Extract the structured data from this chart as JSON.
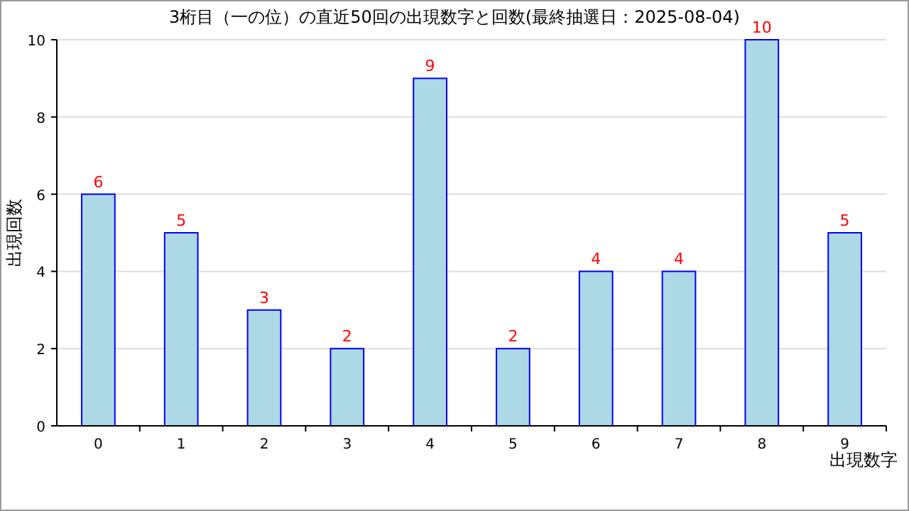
{
  "chart_data": {
    "type": "bar",
    "title": "3桁目（一の位）の直近50回の出現数字と回数(最終抽選日：2025-08-04)",
    "xlabel": "出現数字",
    "ylabel": "出現回数",
    "categories": [
      "0",
      "1",
      "2",
      "3",
      "4",
      "5",
      "6",
      "7",
      "8",
      "9"
    ],
    "values": [
      6,
      5,
      3,
      2,
      9,
      2,
      4,
      4,
      10,
      5
    ],
    "color": "#add8e6",
    "ylim": [
      0,
      10
    ],
    "yticks": [
      0,
      2,
      4,
      6,
      8,
      10
    ],
    "grid": "y",
    "data_labels": true
  }
}
